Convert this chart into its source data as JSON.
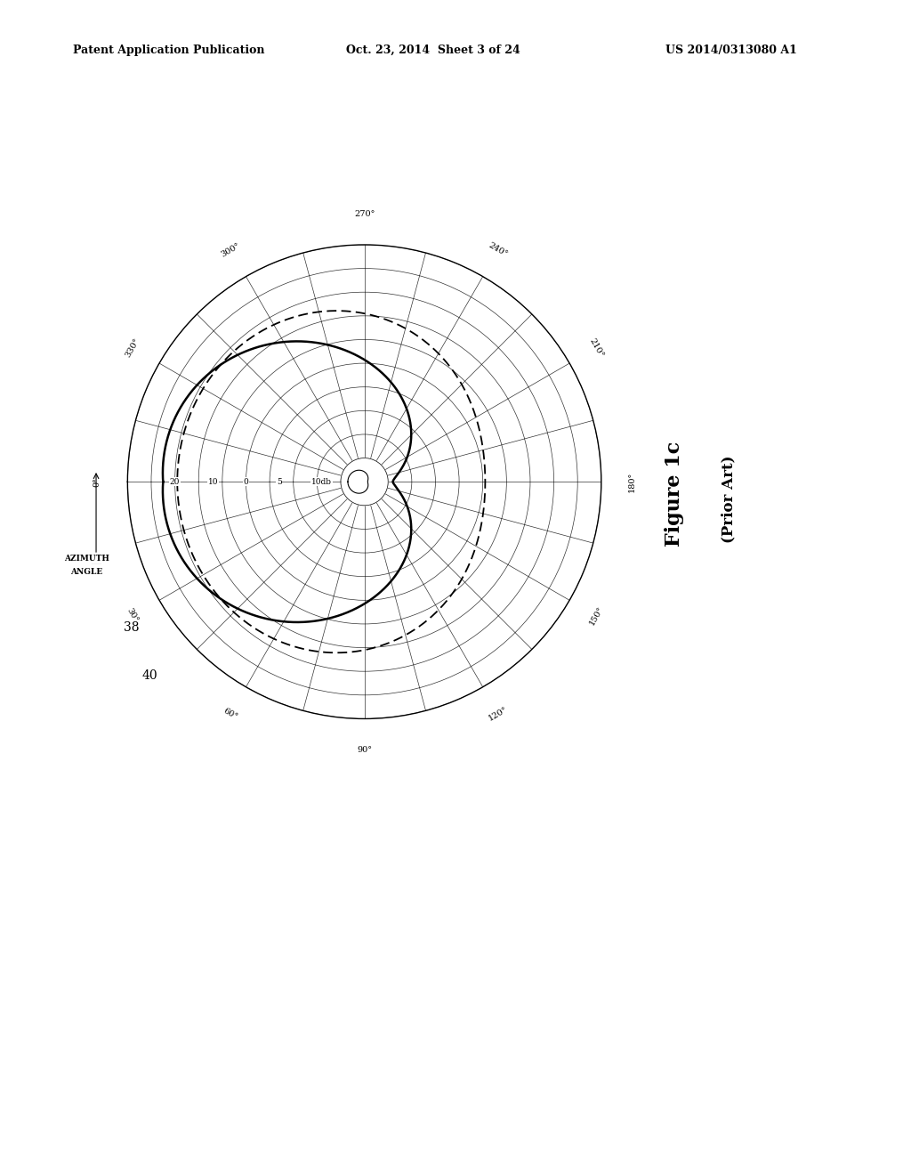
{
  "header_left": "Patent Application Publication",
  "header_mid": "Oct. 23, 2014  Sheet 3 of 24",
  "header_right": "US 2014/0313080 A1",
  "figure_label": "Figure 1c",
  "figure_sublabel": "(Prior Art)",
  "azimuth_label_line1": "AZIMUTH",
  "azimuth_label_line2": "ANGLE",
  "radial_labels": [
    "10db",
    "5",
    "0",
    "10",
    "20"
  ],
  "angle_labels_deg": [
    0,
    30,
    60,
    90,
    120,
    150,
    180,
    210,
    240,
    270,
    300,
    330
  ],
  "angle_label_texts": [
    "0°",
    "30°",
    "60°",
    "90°",
    "120°",
    "150°",
    "180°",
    "210°",
    "240°",
    "270°",
    "300°",
    "330°"
  ],
  "grid_rings": 10,
  "label_38": "38",
  "label_40": "40",
  "background_color": "#ffffff",
  "grid_color": "#000000"
}
